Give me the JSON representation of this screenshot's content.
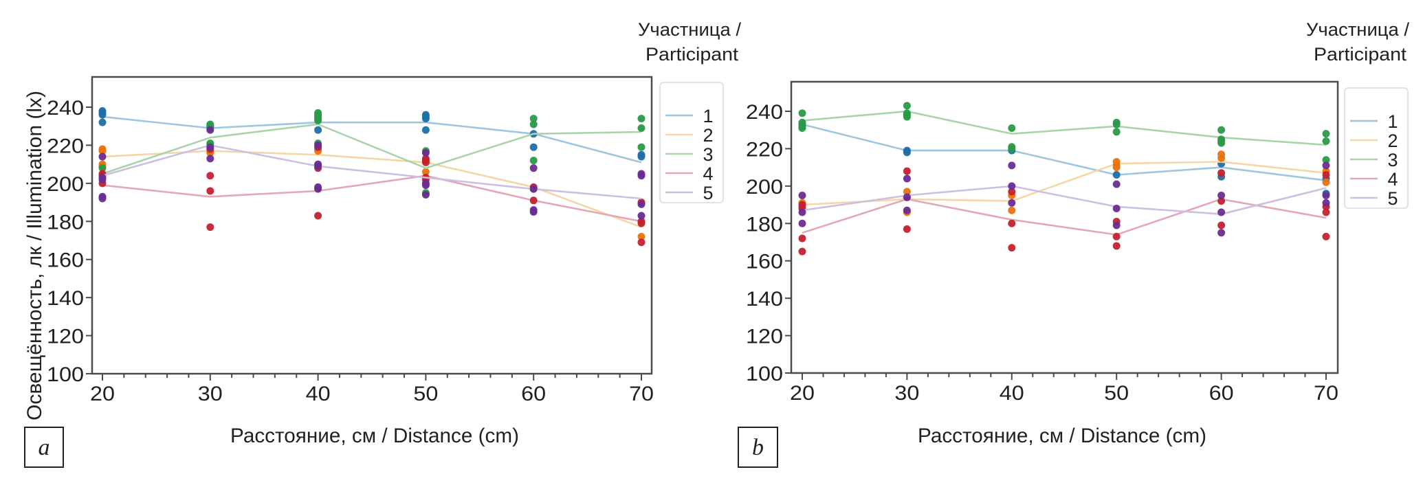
{
  "chart_data": [
    {
      "type": "scatter",
      "panel_label": "a",
      "title": "",
      "xlabel": "Расстояние, см / Distance (cm)",
      "ylabel": "Освещённость, лк / Illumination (lx)",
      "xlim": [
        20,
        70
      ],
      "ylim": [
        100,
        255
      ],
      "x_ticks": [
        20,
        30,
        40,
        50,
        60,
        70
      ],
      "x_minor_step": 2,
      "y_ticks": [
        100,
        120,
        140,
        160,
        180,
        200,
        220,
        240
      ],
      "grid": false,
      "legend": {
        "title": "Участница / Participant",
        "placement": "right",
        "entries": [
          "1",
          "2",
          "3",
          "4",
          "5"
        ]
      },
      "series": [
        {
          "name": "1",
          "line_color": "#9fc6e0",
          "point_color": "#1f6fa8",
          "line": [
            [
              20,
              235
            ],
            [
              30,
              229
            ],
            [
              40,
              232
            ],
            [
              50,
              232
            ],
            [
              60,
              226
            ],
            [
              70,
              211
            ]
          ],
          "points": [
            [
              20,
              238
            ],
            [
              20,
              237
            ],
            [
              20,
              236
            ],
            [
              20,
              232
            ],
            [
              30,
              230
            ],
            [
              30,
              229
            ],
            [
              40,
              228
            ],
            [
              50,
              236
            ],
            [
              50,
              235
            ],
            [
              50,
              234
            ],
            [
              50,
              228
            ],
            [
              60,
              226
            ],
            [
              60,
              219
            ],
            [
              70,
              215
            ],
            [
              70,
              214
            ]
          ]
        },
        {
          "name": "2",
          "line_color": "#f6d6a6",
          "point_color": "#e8730f",
          "line": [
            [
              20,
              214
            ],
            [
              30,
              217
            ],
            [
              40,
              215
            ],
            [
              50,
              211
            ],
            [
              60,
              198
            ],
            [
              70,
              177
            ]
          ],
          "points": [
            [
              20,
              218
            ],
            [
              20,
              217
            ],
            [
              20,
              210
            ],
            [
              20,
              209
            ],
            [
              30,
              217
            ],
            [
              30,
              216
            ],
            [
              40,
              218
            ],
            [
              40,
              217
            ],
            [
              50,
              206
            ],
            [
              60,
              197
            ],
            [
              70,
              172
            ]
          ]
        },
        {
          "name": "3",
          "line_color": "#a9d4a9",
          "point_color": "#2a9a48",
          "line": [
            [
              20,
              205
            ],
            [
              30,
              224
            ],
            [
              40,
              231
            ],
            [
              50,
              208
            ],
            [
              60,
              226
            ],
            [
              70,
              227
            ]
          ],
          "points": [
            [
              20,
              208
            ],
            [
              30,
              231
            ],
            [
              30,
              230
            ],
            [
              30,
              221
            ],
            [
              30,
              220
            ],
            [
              40,
              237
            ],
            [
              40,
              236
            ],
            [
              40,
              235
            ],
            [
              40,
              234
            ],
            [
              40,
              233
            ],
            [
              40,
              221
            ],
            [
              50,
              217
            ],
            [
              50,
              195
            ],
            [
              60,
              234
            ],
            [
              60,
              231
            ],
            [
              60,
              212
            ],
            [
              70,
              234
            ],
            [
              70,
              229
            ],
            [
              70,
              219
            ]
          ]
        },
        {
          "name": "4",
          "line_color": "#e3a8b6",
          "point_color": "#c4212f",
          "line": [
            [
              20,
              199
            ],
            [
              30,
              193
            ],
            [
              40,
              196
            ],
            [
              50,
              204
            ],
            [
              60,
              191
            ],
            [
              70,
              180
            ]
          ],
          "points": [
            [
              20,
              205
            ],
            [
              20,
              204
            ],
            [
              20,
              200
            ],
            [
              30,
              218
            ],
            [
              30,
              204
            ],
            [
              30,
              196
            ],
            [
              30,
              177
            ],
            [
              40,
              219
            ],
            [
              40,
              208
            ],
            [
              40,
              183
            ],
            [
              50,
              213
            ],
            [
              50,
              212
            ],
            [
              50,
              211
            ],
            [
              50,
              203
            ],
            [
              50,
              202
            ],
            [
              60,
              198
            ],
            [
              60,
              191
            ],
            [
              70,
              190
            ],
            [
              70,
              180
            ],
            [
              70,
              179
            ],
            [
              70,
              169
            ]
          ]
        },
        {
          "name": "5",
          "line_color": "#cdbfe2",
          "point_color": "#6a2c91",
          "line": [
            [
              20,
              204
            ],
            [
              30,
              220
            ],
            [
              40,
              209
            ],
            [
              50,
              203
            ],
            [
              60,
              197
            ],
            [
              70,
              192
            ]
          ],
          "points": [
            [
              20,
              214
            ],
            [
              20,
              203
            ],
            [
              20,
              202
            ],
            [
              20,
              193
            ],
            [
              20,
              192
            ],
            [
              30,
              228
            ],
            [
              30,
              219
            ],
            [
              30,
              213
            ],
            [
              40,
              220
            ],
            [
              40,
              210
            ],
            [
              40,
              209
            ],
            [
              40,
              198
            ],
            [
              40,
              197
            ],
            [
              50,
              216
            ],
            [
              50,
              200
            ],
            [
              50,
              199
            ],
            [
              50,
              194
            ],
            [
              60,
              208
            ],
            [
              60,
              197
            ],
            [
              60,
              186
            ],
            [
              60,
              185
            ],
            [
              70,
              205
            ],
            [
              70,
              204
            ],
            [
              70,
              189
            ],
            [
              70,
              183
            ]
          ]
        }
      ]
    },
    {
      "type": "scatter",
      "panel_label": "b",
      "title": "",
      "xlabel": "Расстояние, см / Distance (cm)",
      "ylabel": "",
      "xlim": [
        20,
        70
      ],
      "ylim": [
        100,
        255
      ],
      "x_ticks": [
        20,
        30,
        40,
        50,
        60,
        70
      ],
      "x_minor_step": 2,
      "y_ticks": [
        100,
        120,
        140,
        160,
        180,
        200,
        220,
        240
      ],
      "grid": false,
      "legend": {
        "title": "Участница / Participant",
        "placement": "right",
        "entries": [
          "1",
          "2",
          "3",
          "4",
          "5"
        ]
      },
      "series": [
        {
          "name": "1",
          "line_color": "#9fc6e0",
          "point_color": "#1f6fa8",
          "line": [
            [
              20,
              233
            ],
            [
              30,
              219
            ],
            [
              40,
              219
            ],
            [
              50,
              206
            ],
            [
              60,
              210
            ],
            [
              70,
              203
            ]
          ],
          "points": [
            [
              20,
              233
            ],
            [
              30,
              219
            ],
            [
              30,
              218
            ],
            [
              40,
              219
            ],
            [
              50,
              206
            ],
            [
              60,
              212
            ],
            [
              60,
              205
            ],
            [
              70,
              204
            ],
            [
              70,
              196
            ]
          ]
        },
        {
          "name": "2",
          "line_color": "#f6d6a6",
          "point_color": "#e8730f",
          "line": [
            [
              20,
              190
            ],
            [
              30,
              193
            ],
            [
              40,
              192
            ],
            [
              50,
              212
            ],
            [
              60,
              213
            ],
            [
              70,
              207
            ]
          ],
          "points": [
            [
              20,
              191
            ],
            [
              20,
              189
            ],
            [
              30,
              197
            ],
            [
              30,
              186
            ],
            [
              40,
              195
            ],
            [
              40,
              187
            ],
            [
              50,
              213
            ],
            [
              50,
              211
            ],
            [
              50,
              210
            ],
            [
              60,
              217
            ],
            [
              60,
              215
            ],
            [
              70,
              208
            ],
            [
              70,
              202
            ]
          ]
        },
        {
          "name": "3",
          "line_color": "#a9d4a9",
          "point_color": "#2a9a48",
          "line": [
            [
              20,
              235
            ],
            [
              30,
              240
            ],
            [
              40,
              228
            ],
            [
              50,
              232
            ],
            [
              60,
              226
            ],
            [
              70,
              222
            ]
          ],
          "points": [
            [
              20,
              239
            ],
            [
              20,
              234
            ],
            [
              20,
              233
            ],
            [
              20,
              232
            ],
            [
              20,
              231
            ],
            [
              30,
              243
            ],
            [
              30,
              239
            ],
            [
              30,
              238
            ],
            [
              30,
              237
            ],
            [
              40,
              231
            ],
            [
              40,
              221
            ],
            [
              40,
              220
            ],
            [
              50,
              234
            ],
            [
              50,
              233
            ],
            [
              50,
              229
            ],
            [
              60,
              230
            ],
            [
              60,
              225
            ],
            [
              60,
              224
            ],
            [
              60,
              223
            ],
            [
              70,
              228
            ],
            [
              70,
              224
            ],
            [
              70,
              214
            ]
          ]
        },
        {
          "name": "4",
          "line_color": "#e3a8b6",
          "point_color": "#c4212f",
          "line": [
            [
              20,
              175
            ],
            [
              30,
              193
            ],
            [
              40,
              182
            ],
            [
              50,
              174
            ],
            [
              60,
              193
            ],
            [
              70,
              183
            ]
          ],
          "points": [
            [
              20,
              190
            ],
            [
              20,
              188
            ],
            [
              20,
              172
            ],
            [
              20,
              165
            ],
            [
              30,
              208
            ],
            [
              30,
              194
            ],
            [
              30,
              177
            ],
            [
              40,
              197
            ],
            [
              40,
              180
            ],
            [
              40,
              167
            ],
            [
              50,
              181
            ],
            [
              50,
              173
            ],
            [
              50,
              168
            ],
            [
              60,
              207
            ],
            [
              60,
              192
            ],
            [
              60,
              179
            ],
            [
              70,
              206
            ],
            [
              70,
              189
            ],
            [
              70,
              186
            ],
            [
              70,
              173
            ]
          ]
        },
        {
          "name": "5",
          "line_color": "#cdbfe2",
          "point_color": "#6a2c91",
          "line": [
            [
              20,
              187
            ],
            [
              30,
              195
            ],
            [
              40,
              200
            ],
            [
              50,
              189
            ],
            [
              60,
              185
            ],
            [
              70,
              199
            ]
          ],
          "points": [
            [
              20,
              195
            ],
            [
              20,
              186
            ],
            [
              20,
              180
            ],
            [
              30,
              204
            ],
            [
              30,
              187
            ],
            [
              30,
              194
            ],
            [
              40,
              211
            ],
            [
              40,
              200
            ],
            [
              40,
              191
            ],
            [
              50,
              201
            ],
            [
              50,
              188
            ],
            [
              50,
              179
            ],
            [
              60,
              195
            ],
            [
              60,
              186
            ],
            [
              60,
              175
            ],
            [
              70,
              211
            ],
            [
              70,
              195
            ],
            [
              70,
              191
            ]
          ]
        }
      ]
    }
  ]
}
